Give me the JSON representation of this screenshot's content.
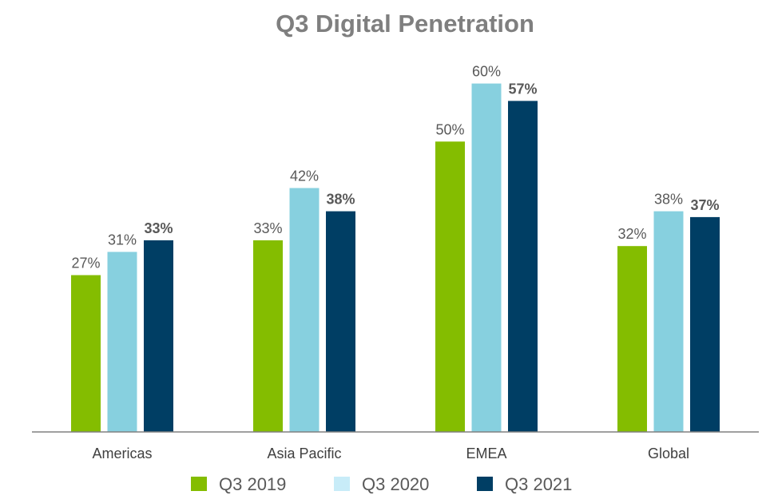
{
  "chart_data": {
    "type": "bar",
    "title": "Q3 Digital Penetration",
    "categories": [
      "Americas",
      "Asia Pacific",
      "EMEA",
      "Global"
    ],
    "series": [
      {
        "name": "Q3 2019",
        "color": "#84bd00",
        "legend_color": "#84bd00",
        "values": [
          27,
          33,
          50,
          32
        ],
        "labels": [
          "27%",
          "33%",
          "50%",
          "32%"
        ]
      },
      {
        "name": "Q3 2020",
        "color": "#87d0df",
        "legend_color": "#c8ecf8",
        "values": [
          31,
          42,
          60,
          38
        ],
        "labels": [
          "31%",
          "42%",
          "60%",
          "38%"
        ]
      },
      {
        "name": "Q3 2021",
        "color": "#003e64",
        "legend_color": "#003e64",
        "values": [
          33,
          38,
          57,
          37
        ],
        "labels": [
          "33%",
          "38%",
          "57%",
          "37%"
        ]
      }
    ],
    "ylim": [
      0,
      67.5
    ],
    "value_unit": "%",
    "grid": false,
    "legend_position": "bottom"
  }
}
